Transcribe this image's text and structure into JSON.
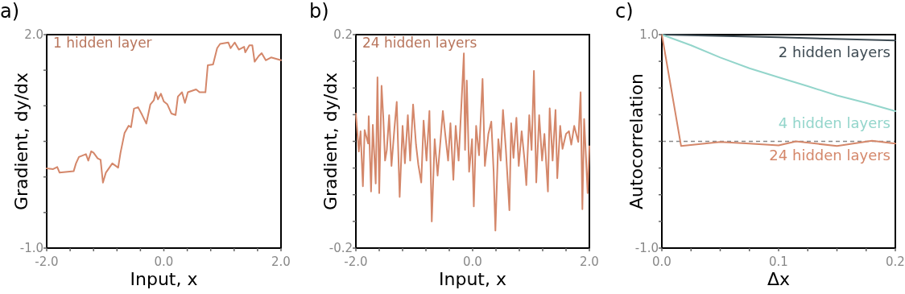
{
  "chart_data": [
    {
      "type": "line",
      "title": "a)",
      "xlabel": "Input, x",
      "ylabel": "Gradient, dy/dx",
      "xlim": [
        -2,
        2
      ],
      "ylim": [
        -1,
        2
      ],
      "xticks": [
        {
          "value": -2,
          "label": "-2.0"
        },
        {
          "value": -1.6,
          "label": null
        },
        {
          "value": -1.2,
          "label": null
        },
        {
          "value": -0.8,
          "label": null
        },
        {
          "value": -0.4,
          "label": null
        },
        {
          "value": 0,
          "label": "0.0"
        },
        {
          "value": 0.4,
          "label": null
        },
        {
          "value": 0.8,
          "label": null
        },
        {
          "value": 1.2,
          "label": null
        },
        {
          "value": 1.6,
          "label": null
        },
        {
          "value": 2,
          "label": "2.0"
        }
      ],
      "yticks": [
        {
          "value": -1,
          "label": "-1.0"
        },
        {
          "value": -0.5,
          "label": null
        },
        {
          "value": 0,
          "label": null
        },
        {
          "value": 0.5,
          "label": null
        },
        {
          "value": 1,
          "label": null
        },
        {
          "value": 1.5,
          "label": null
        },
        {
          "value": 2,
          "label": "2.0"
        }
      ],
      "series": [
        {
          "name": "1 hidden layer",
          "color": "#d4876a",
          "x": [
            -2,
            -1.89,
            -1.82,
            -1.78,
            -1.54,
            -1.5,
            -1.45,
            -1.33,
            -1.29,
            -1.24,
            -1.2,
            -1.13,
            -1.08,
            -1.04,
            -0.99,
            -0.88,
            -0.78,
            -0.74,
            -0.67,
            -0.6,
            -0.56,
            -0.51,
            -0.44,
            -0.37,
            -0.3,
            -0.23,
            -0.17,
            -0.14,
            -0.1,
            -0.05,
            0,
            0.06,
            0.13,
            0.2,
            0.24,
            0.31,
            0.36,
            0.41,
            0.55,
            0.61,
            0.71,
            0.75,
            0.84,
            0.91,
            0.96,
            1.1,
            1.14,
            1.21,
            1.28,
            1.37,
            1.39,
            1.46,
            1.51,
            1.55,
            1.62,
            1.67,
            1.74,
            1.83,
            2
          ],
          "values": [
            0.12,
            0.11,
            0.14,
            0.06,
            0.08,
            0.19,
            0.28,
            0.32,
            0.23,
            0.36,
            0.34,
            0.26,
            0.24,
            -0.08,
            0.06,
            0.19,
            0.13,
            0.34,
            0.62,
            0.72,
            0.7,
            0.96,
            0.98,
            0.87,
            0.75,
            1.02,
            1.08,
            1.19,
            1.09,
            1.17,
            1.06,
            1.02,
            0.89,
            0.87,
            1.13,
            1.19,
            1.04,
            1.19,
            1.23,
            1.19,
            1.19,
            1.57,
            1.58,
            1.81,
            1.87,
            1.89,
            1.81,
            1.89,
            1.79,
            1.83,
            1.75,
            1.85,
            1.85,
            1.62,
            1.7,
            1.74,
            1.64,
            1.68,
            1.64
          ]
        }
      ]
    },
    {
      "type": "line",
      "title": "b)",
      "xlabel": "Input, x",
      "ylabel": "Gradient, dy/dx",
      "xlim": [
        -2,
        2
      ],
      "ylim": [
        -0.2,
        0.2
      ],
      "xticks": [
        {
          "value": -2,
          "label": "-2.0"
        },
        {
          "value": -1.6,
          "label": null
        },
        {
          "value": -1.2,
          "label": null
        },
        {
          "value": -0.8,
          "label": null
        },
        {
          "value": -0.4,
          "label": null
        },
        {
          "value": 0,
          "label": "0.0"
        },
        {
          "value": 0.4,
          "label": null
        },
        {
          "value": 0.8,
          "label": null
        },
        {
          "value": 1.2,
          "label": null
        },
        {
          "value": 1.6,
          "label": null
        },
        {
          "value": 2,
          "label": "2.0"
        }
      ],
      "yticks": [
        -0.2,
        {
          "value": -0.15,
          "label": null
        },
        {
          "value": -0.1,
          "label": null
        },
        {
          "value": -0.05,
          "label": null
        },
        {
          "value": 0,
          "label": null
        },
        {
          "value": 0.05,
          "label": null
        },
        {
          "value": 0.1,
          "label": null
        },
        {
          "value": 0.15,
          "label": null
        },
        0.2
      ],
      "series": [
        {
          "name": "24 hidden layers",
          "color": "#d4876a",
          "x": [
            -2,
            -1.95,
            -1.92,
            -1.88,
            -1.85,
            -1.79,
            -1.78,
            -1.74,
            -1.71,
            -1.66,
            -1.63,
            -1.6,
            -1.56,
            -1.53,
            -1.5,
            -1.47,
            -1.43,
            -1.39,
            -1.34,
            -1.3,
            -1.25,
            -1.2,
            -1.16,
            -1.11,
            -1.07,
            -1.02,
            -0.97,
            -0.93,
            -0.88,
            -0.84,
            -0.79,
            -0.74,
            -0.7,
            -0.65,
            -0.6,
            -0.56,
            -0.51,
            -0.47,
            -0.42,
            -0.38,
            -0.33,
            -0.29,
            -0.24,
            -0.19,
            -0.15,
            -0.13,
            -0.1,
            -0.06,
            -0.01,
            0.02,
            0.06,
            0.11,
            0.17,
            0.21,
            0.27,
            0.32,
            0.36,
            0.39,
            0.44,
            0.48,
            0.52,
            0.57,
            0.63,
            0.66,
            0.7,
            0.75,
            0.79,
            0.84,
            0.89,
            0.92,
            0.97,
            1.01,
            1.05,
            1.09,
            1.14,
            1.19,
            1.23,
            1.29,
            1.32,
            1.37,
            1.42,
            1.45,
            1.5,
            1.54,
            1.6,
            1.65,
            1.69,
            1.74,
            1.81,
            1.85,
            1.88,
            1.91,
            1.94,
            1.97,
            2
          ],
          "values": [
            0.052,
            -0.019,
            0.019,
            -0.084,
            0.021,
            -0.004,
            0.047,
            -0.094,
            0.031,
            -0.079,
            0.12,
            -0.097,
            0.104,
            0.044,
            -0.036,
            -0.016,
            0.049,
            -0.046,
            0.024,
            0.074,
            -0.104,
            0.029,
            -0.041,
            0.049,
            -0.036,
            0.069,
            -0.006,
            -0.044,
            -0.077,
            0.039,
            -0.036,
            0.057,
            -0.15,
            0.004,
            -0.064,
            -0.011,
            0.057,
            0.014,
            -0.036,
            0.034,
            -0.072,
            0.029,
            -0.036,
            0.074,
            0.165,
            -0.016,
            0.114,
            -0.057,
            0.004,
            -0.122,
            0.029,
            -0.026,
            0.117,
            -0.046,
            0.014,
            0.037,
            -0.057,
            -0.167,
            0.004,
            -0.036,
            0.059,
            -0.016,
            -0.129,
            0.034,
            -0.031,
            0.044,
            -0.046,
            0.019,
            -0.036,
            -0.082,
            0.049,
            -0.016,
            0.132,
            -0.077,
            0.049,
            -0.036,
            0.014,
            -0.094,
            0.062,
            -0.036,
            0.059,
            -0.069,
            0.029,
            -0.014,
            0.014,
            0.019,
            -0.006,
            0.029,
            -0.001,
            0.092,
            -0.127,
            0.042,
            -0.026,
            -0.097,
            -0.009
          ]
        }
      ]
    },
    {
      "type": "line",
      "title": "c)",
      "xlabel": "Δx",
      "ylabel": "Autocorrelation",
      "xlim": [
        0,
        0.2
      ],
      "ylim": [
        -1,
        1
      ],
      "xticks": [
        {
          "value": 0,
          "label": "0.0"
        },
        {
          "value": 0.025,
          "label": null
        },
        {
          "value": 0.05,
          "label": null
        },
        {
          "value": 0.075,
          "label": null
        },
        0.1,
        {
          "value": 0.125,
          "label": null
        },
        {
          "value": 0.15,
          "label": null
        },
        {
          "value": 0.175,
          "label": null
        },
        0.2
      ],
      "yticks": [
        {
          "value": -1,
          "label": "-1.0"
        },
        {
          "value": -0.75,
          "label": null
        },
        {
          "value": -0.5,
          "label": null
        },
        {
          "value": -0.25,
          "label": null
        },
        {
          "value": 0,
          "label": null
        },
        {
          "value": 0.25,
          "label": null
        },
        {
          "value": 0.5,
          "label": null
        },
        {
          "value": 0.75,
          "label": null
        },
        {
          "value": 1,
          "label": "1.0"
        }
      ],
      "ref_lines": [
        {
          "axis": "y",
          "value": 0,
          "color": "#888888",
          "line_style": "dashed"
        }
      ],
      "series": [
        {
          "name": "2 hidden layers",
          "color": "#3d4a52",
          "x": [
            0,
            0.1,
            0.2
          ],
          "values": [
            1.0,
            0.975,
            0.945
          ]
        },
        {
          "name": "4 hidden layers",
          "color": "#93d5cb",
          "x": [
            0,
            0.025,
            0.05,
            0.075,
            0.1,
            0.125,
            0.15,
            0.175,
            0.2
          ],
          "values": [
            1.0,
            0.9,
            0.786,
            0.685,
            0.6,
            0.517,
            0.43,
            0.36,
            0.283
          ]
        },
        {
          "name": "24 hidden layers",
          "color": "#d4876a",
          "x": [
            0,
            0.0165,
            0.05,
            0.075,
            0.1,
            0.115,
            0.15,
            0.18,
            0.2
          ],
          "values": [
            1.0,
            -0.044,
            -0.006,
            -0.02,
            -0.037,
            0.0,
            -0.044,
            0.006,
            -0.02
          ]
        }
      ]
    }
  ]
}
